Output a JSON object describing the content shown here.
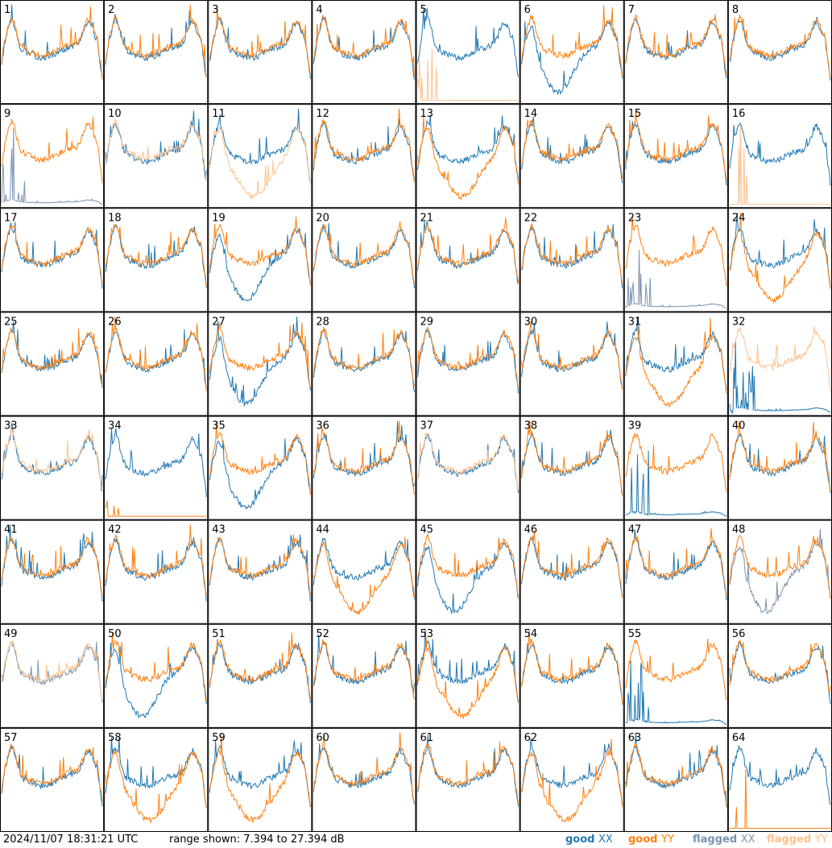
{
  "chart_data": {
    "type": "line",
    "grid": {
      "rows": 8,
      "cols": 8
    },
    "panels": [
      {
        "label": "1",
        "pattern": "normal",
        "flagged": ""
      },
      {
        "label": "2",
        "pattern": "normal",
        "flagged": ""
      },
      {
        "label": "3",
        "pattern": "normal",
        "flagged": ""
      },
      {
        "label": "4",
        "pattern": "normal",
        "flagged": ""
      },
      {
        "label": "5",
        "pattern": "drop_y",
        "flagged": "yy"
      },
      {
        "label": "6",
        "pattern": "dip_x",
        "flagged": ""
      },
      {
        "label": "7",
        "pattern": "normal",
        "flagged": ""
      },
      {
        "label": "8",
        "pattern": "normal",
        "flagged": ""
      },
      {
        "label": "9",
        "pattern": "drop_x",
        "flagged": "xx"
      },
      {
        "label": "10",
        "pattern": "normal",
        "flagged": "yy"
      },
      {
        "label": "11",
        "pattern": "dip_y",
        "flagged": "yy"
      },
      {
        "label": "12",
        "pattern": "normal",
        "flagged": ""
      },
      {
        "label": "13",
        "pattern": "dip_y",
        "flagged": ""
      },
      {
        "label": "14",
        "pattern": "normal",
        "flagged": ""
      },
      {
        "label": "15",
        "pattern": "normal",
        "flagged": ""
      },
      {
        "label": "16",
        "pattern": "drop_y",
        "flagged": "yy"
      },
      {
        "label": "17",
        "pattern": "normal",
        "flagged": ""
      },
      {
        "label": "18",
        "pattern": "normal",
        "flagged": ""
      },
      {
        "label": "19",
        "pattern": "dip_x",
        "flagged": ""
      },
      {
        "label": "20",
        "pattern": "normal",
        "flagged": ""
      },
      {
        "label": "21",
        "pattern": "normal",
        "flagged": ""
      },
      {
        "label": "22",
        "pattern": "normal",
        "flagged": ""
      },
      {
        "label": "23",
        "pattern": "drop_x",
        "flagged": "xx"
      },
      {
        "label": "24",
        "pattern": "dip_y",
        "flagged": ""
      },
      {
        "label": "25",
        "pattern": "normal",
        "flagged": ""
      },
      {
        "label": "26",
        "pattern": "normal",
        "flagged": ""
      },
      {
        "label": "27",
        "pattern": "dip_x",
        "flagged": ""
      },
      {
        "label": "28",
        "pattern": "normal",
        "flagged": ""
      },
      {
        "label": "29",
        "pattern": "normal",
        "flagged": ""
      },
      {
        "label": "30",
        "pattern": "normal",
        "flagged": ""
      },
      {
        "label": "31",
        "pattern": "dip_y",
        "flagged": ""
      },
      {
        "label": "32",
        "pattern": "drop_x",
        "flagged": "yy"
      },
      {
        "label": "33",
        "pattern": "normal",
        "flagged": "yy"
      },
      {
        "label": "34",
        "pattern": "drop_y",
        "flagged": ""
      },
      {
        "label": "35",
        "pattern": "dip_x",
        "flagged": ""
      },
      {
        "label": "36",
        "pattern": "normal",
        "flagged": ""
      },
      {
        "label": "37",
        "pattern": "normal",
        "flagged": "yy"
      },
      {
        "label": "38",
        "pattern": "normal",
        "flagged": ""
      },
      {
        "label": "39",
        "pattern": "drop_x",
        "flagged": ""
      },
      {
        "label": "40",
        "pattern": "normal",
        "flagged": ""
      },
      {
        "label": "41",
        "pattern": "normal",
        "flagged": ""
      },
      {
        "label": "42",
        "pattern": "normal",
        "flagged": ""
      },
      {
        "label": "43",
        "pattern": "normal",
        "flagged": ""
      },
      {
        "label": "44",
        "pattern": "dip_y",
        "flagged": ""
      },
      {
        "label": "45",
        "pattern": "dip_x",
        "flagged": ""
      },
      {
        "label": "46",
        "pattern": "normal",
        "flagged": ""
      },
      {
        "label": "47",
        "pattern": "normal",
        "flagged": ""
      },
      {
        "label": "48",
        "pattern": "dip_x",
        "flagged": "xx"
      },
      {
        "label": "49",
        "pattern": "normal",
        "flagged": "both"
      },
      {
        "label": "50",
        "pattern": "dip_x",
        "flagged": ""
      },
      {
        "label": "51",
        "pattern": "normal",
        "flagged": ""
      },
      {
        "label": "52",
        "pattern": "normal",
        "flagged": ""
      },
      {
        "label": "53",
        "pattern": "dip_y",
        "flagged": ""
      },
      {
        "label": "54",
        "pattern": "normal",
        "flagged": ""
      },
      {
        "label": "55",
        "pattern": "drop_x",
        "flagged": ""
      },
      {
        "label": "56",
        "pattern": "normal",
        "flagged": ""
      },
      {
        "label": "57",
        "pattern": "normal",
        "flagged": ""
      },
      {
        "label": "58",
        "pattern": "dip_y",
        "flagged": ""
      },
      {
        "label": "59",
        "pattern": "dip_y",
        "flagged": ""
      },
      {
        "label": "60",
        "pattern": "normal",
        "flagged": ""
      },
      {
        "label": "61",
        "pattern": "normal",
        "flagged": ""
      },
      {
        "label": "62",
        "pattern": "dip_y",
        "flagged": ""
      },
      {
        "label": "63",
        "pattern": "normal",
        "flagged": ""
      },
      {
        "label": "64",
        "pattern": "drop_y",
        "flagged": ""
      }
    ],
    "legend": [
      {
        "key": "good",
        "pol": "XX",
        "color": "#1f77b4"
      },
      {
        "key": "good",
        "pol": "YY",
        "color": "#ff7f0e"
      },
      {
        "key": "flagged",
        "pol": "XX",
        "color": "#7a94b0"
      },
      {
        "key": "flagged",
        "pol": "YY",
        "color": "#ffc08a"
      }
    ],
    "legend_placement": "bottom-right",
    "ylim": [
      7.394,
      27.394
    ]
  },
  "footer": {
    "timestamp": "2024/11/07 18:31:21 UTC",
    "range_text": "range shown: 7.394 to 27.394 dB"
  },
  "colors": {
    "good_xx": "#1f77b4",
    "good_yy": "#ff7f0e",
    "flagged_xx": "#7a94b0",
    "flagged_yy": "#ffc08a"
  }
}
